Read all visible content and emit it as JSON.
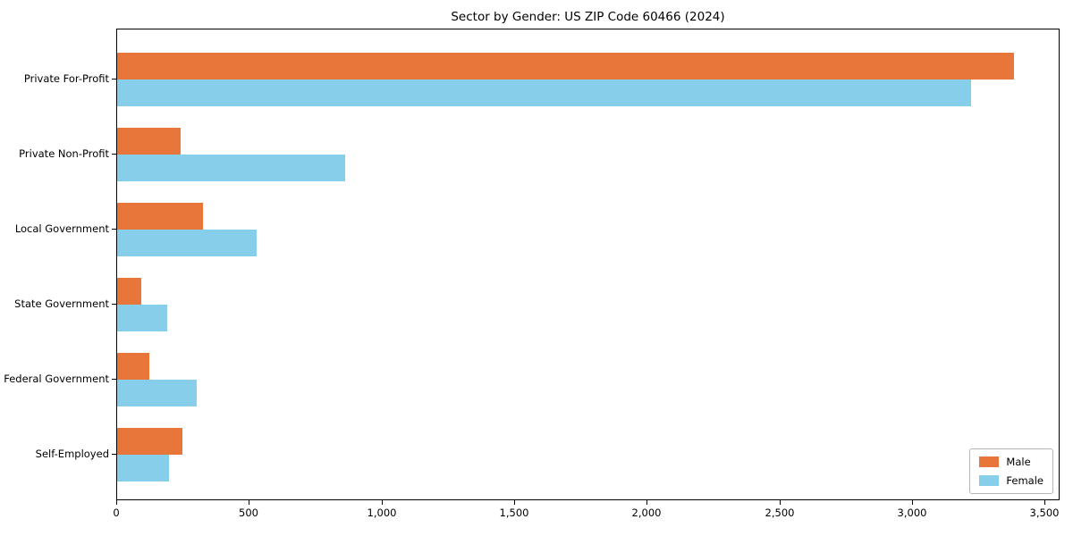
{
  "chart_data": {
    "type": "bar",
    "orientation": "horizontal",
    "title": "Sector by Gender: US ZIP Code 60466 (2024)",
    "categories": [
      "Private For-Profit",
      "Private Non-Profit",
      "Local Government",
      "State Government",
      "Federal Government",
      "Self-Employed"
    ],
    "series": [
      {
        "name": "Male",
        "color": "#e8763a",
        "values": [
          3380,
          240,
          325,
          90,
          120,
          245
        ]
      },
      {
        "name": "Female",
        "color": "#87ceeb",
        "values": [
          3220,
          860,
          525,
          190,
          300,
          195
        ]
      }
    ],
    "xlim": [
      0,
      3550
    ],
    "x_ticks": [
      0,
      500,
      1000,
      1500,
      2000,
      2500,
      3000,
      3500
    ],
    "x_tick_labels": [
      "0",
      "500",
      "1,000",
      "1,500",
      "2,000",
      "2,500",
      "3,000",
      "3,500"
    ],
    "grid": false,
    "legend_position": "lower right",
    "legend_labels": [
      "Male",
      "Female"
    ]
  }
}
